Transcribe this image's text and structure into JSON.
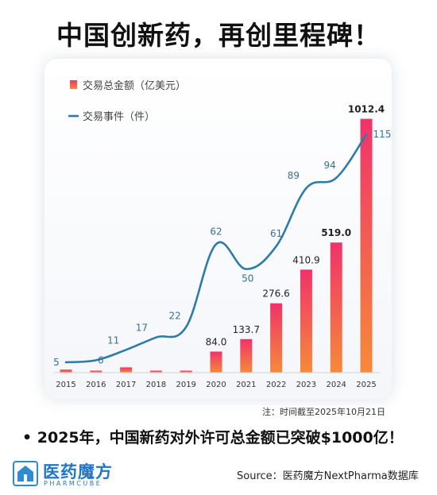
{
  "header": {
    "title": "中国创新药，再创里程碑！"
  },
  "chart_data": {
    "type": "bar",
    "categories": [
      "2015",
      "2016",
      "2017",
      "2018",
      "2019",
      "2020",
      "2021",
      "2022",
      "2023",
      "2024",
      "2025"
    ],
    "series": [
      {
        "name": "交易总金额（亿美元）",
        "kind": "bar",
        "values": [
          12,
          4,
          21,
          8,
          7,
          84.0,
          133.7,
          276.6,
          410.9,
          519.0,
          1012.4
        ],
        "labels": [
          "",
          "",
          "",
          "",
          "",
          "84.0",
          "133.7",
          "276.6",
          "410.9",
          "519.0",
          "1012.4"
        ]
      },
      {
        "name": "交易事件（件）",
        "kind": "line",
        "values": [
          5,
          6,
          11,
          17,
          22,
          62,
          50,
          61,
          89,
          94,
          115
        ],
        "labels": [
          "5",
          "6",
          "11",
          "17",
          "22",
          "62",
          "50",
          "61",
          "89",
          "94",
          "115"
        ]
      }
    ],
    "ylim_bar": [
      0,
      1030
    ],
    "ylim_line": [
      0,
      130
    ],
    "legend_position": "top-left",
    "grid": false,
    "colors": {
      "bar_top": "#f0336a",
      "bar_bottom": "#f58a3a",
      "line": "#2f7ba8",
      "label_line": "#3a6f8f"
    }
  },
  "footer": {
    "note": "注：时间截至2025年10月21日",
    "bullet": "• 2025年，中国新药对外许可总金额已突破$1000亿！",
    "logo_name": "医药魔方",
    "logo_sub": "PHARMCUBE",
    "source": "Source：医药魔方NextPharma数据库"
  }
}
